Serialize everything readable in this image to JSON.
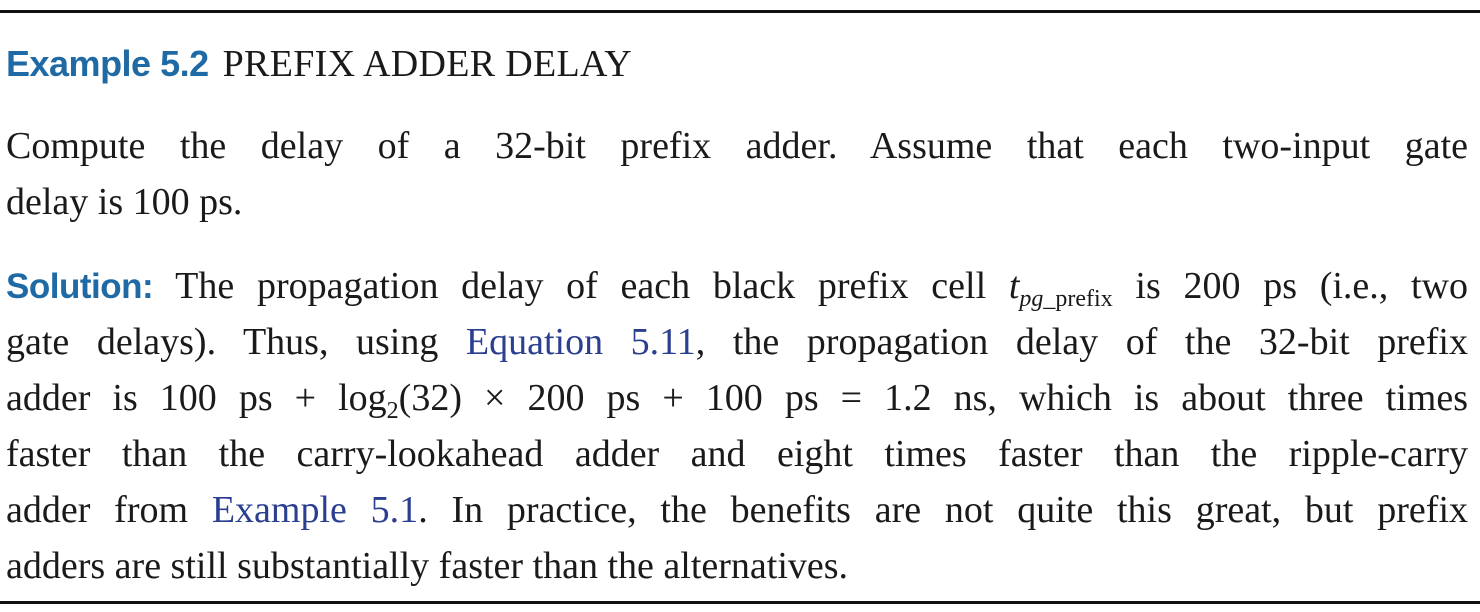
{
  "example": {
    "label": "Example 5.2",
    "title": "PREFIX ADDER DELAY"
  },
  "problem": {
    "line1": "Compute the delay of a 32-bit prefix adder. Assume that each two-input gate",
    "line2": "delay is 100 ps."
  },
  "solution": {
    "label": "Solution:",
    "l1_a": " The propagation delay of each black prefix cell ",
    "l1_var": "t",
    "l1_sub_italic": "pg",
    "l1_sub_upright": "_prefix",
    "l1_b": " is 200 ps (i.e., two",
    "l2_a": "gate delays). Thus, using ",
    "l2_link": "Equation 5.11",
    "l2_b": ", the propagation delay of the 32-bit prefix",
    "l3_a": "adder is 100 ps + log",
    "l3_sub": "2",
    "l3_b": "(32) × 200 ps + 100 ps = 1.2 ns, which is about three times",
    "l4": "faster than the carry-lookahead adder and eight times faster than the ripple-carry",
    "l5_a": "adder from ",
    "l5_link": "Example 5.1",
    "l5_b": ". In practice, the benefits are not quite this great, but prefix",
    "l6": "adders are still substantially faster than the alternatives."
  }
}
